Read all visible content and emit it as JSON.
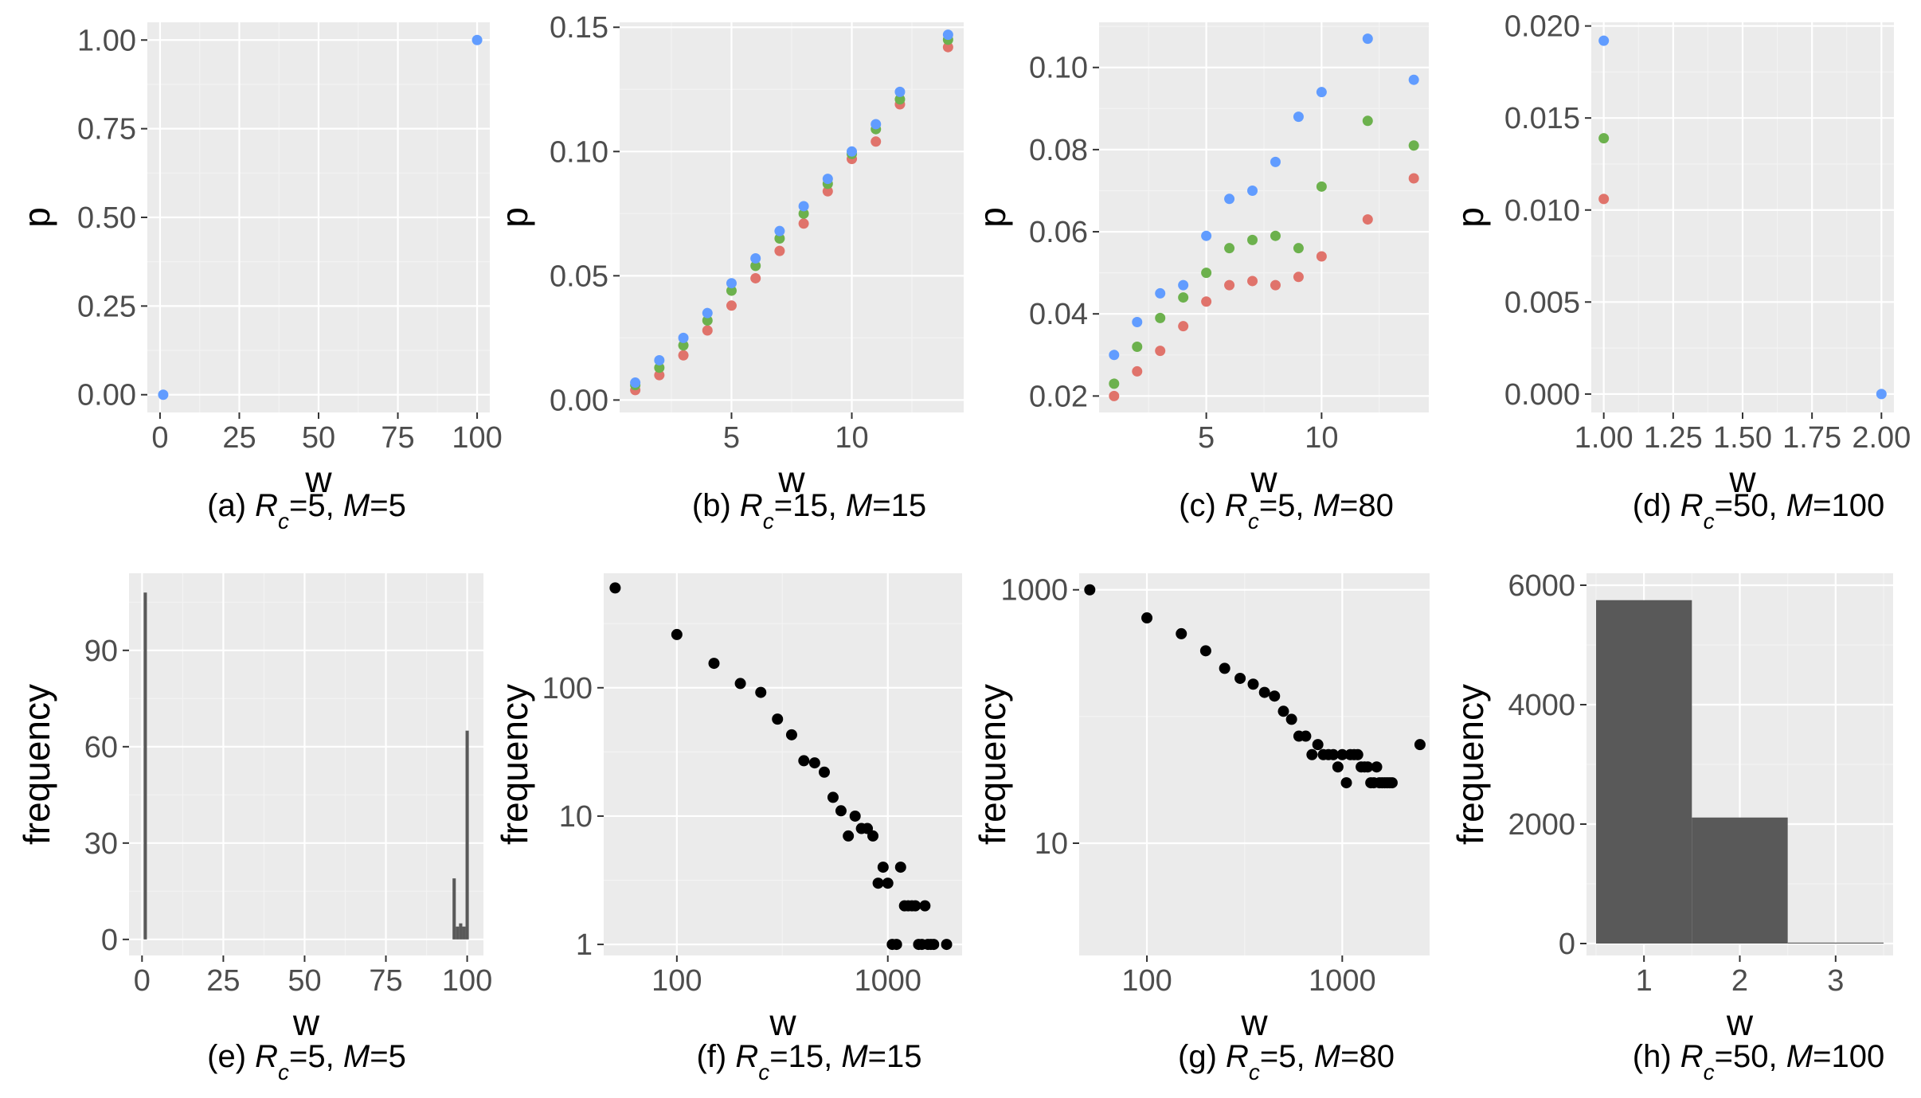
{
  "colors": {
    "panel_bg": "#ebebeb",
    "grid_major": "#ffffff",
    "grid_minor": "#f3f3f3",
    "tick_text": "#4d4d4d",
    "series_blue": "#619cff",
    "series_green": "#6cb14d",
    "series_red": "#e0736b",
    "point_black": "#000000",
    "bar_fill": "#595959"
  },
  "chart_data": [
    {
      "id": "a",
      "type": "scatter",
      "caption": {
        "prefix": "(a) ",
        "rc_label": "R",
        "rc_sub": "c",
        "rc_value": "=5",
        "sep": ", ",
        "m_label": "M",
        "m_value": "=5"
      },
      "xlabel": "w",
      "ylabel": "p",
      "xlim": [
        -4,
        104
      ],
      "ylim": [
        -0.05,
        1.05
      ],
      "x_ticks": [
        0,
        25,
        50,
        75,
        100
      ],
      "x_tick_labels": [
        "0",
        "25",
        "50",
        "75",
        "100"
      ],
      "y_ticks": [
        0,
        0.25,
        0.5,
        0.75,
        1.0
      ],
      "y_tick_labels": [
        "0.00",
        "0.25",
        "0.50",
        "0.75",
        "1.00"
      ],
      "series": [
        {
          "color": "series_blue",
          "x": [
            1,
            100
          ],
          "y": [
            0.0,
            1.0
          ]
        }
      ]
    },
    {
      "id": "b",
      "type": "scatter",
      "caption": {
        "prefix": "(b) ",
        "rc_label": "R",
        "rc_sub": "c",
        "rc_value": "=15",
        "sep": ", ",
        "m_label": "M",
        "m_value": "=15"
      },
      "xlabel": "w",
      "ylabel": "p",
      "xlim": [
        0.35,
        14.65
      ],
      "ylim": [
        -0.005,
        0.152
      ],
      "x_ticks": [
        5,
        10
      ],
      "x_tick_labels": [
        "5",
        "10"
      ],
      "y_ticks": [
        0,
        0.05,
        0.1,
        0.15
      ],
      "y_tick_labels": [
        "0.00",
        "0.05",
        "0.10",
        "0.15"
      ],
      "series": [
        {
          "color": "series_red",
          "x": [
            1,
            2,
            3,
            4,
            5,
            6,
            7,
            8,
            9,
            10,
            11,
            12,
            14
          ],
          "y": [
            0.004,
            0.01,
            0.018,
            0.028,
            0.038,
            0.049,
            0.06,
            0.071,
            0.084,
            0.097,
            0.104,
            0.119,
            0.142
          ]
        },
        {
          "color": "series_green",
          "x": [
            1,
            2,
            3,
            4,
            5,
            6,
            7,
            8,
            9,
            10,
            11,
            12,
            14
          ],
          "y": [
            0.006,
            0.013,
            0.022,
            0.032,
            0.044,
            0.054,
            0.065,
            0.075,
            0.087,
            0.099,
            0.109,
            0.121,
            0.145
          ]
        },
        {
          "color": "series_blue",
          "x": [
            1,
            2,
            3,
            4,
            5,
            6,
            7,
            8,
            9,
            10,
            11,
            12,
            14
          ],
          "y": [
            0.007,
            0.016,
            0.025,
            0.035,
            0.047,
            0.057,
            0.068,
            0.078,
            0.089,
            0.1,
            0.111,
            0.124,
            0.147
          ]
        }
      ]
    },
    {
      "id": "c",
      "type": "scatter",
      "caption": {
        "prefix": "(c) ",
        "rc_label": "R",
        "rc_sub": "c",
        "rc_value": "=5",
        "sep": ", ",
        "m_label": "M",
        "m_value": "=80"
      },
      "xlabel": "w",
      "ylabel": "p",
      "xlim": [
        0.35,
        14.65
      ],
      "ylim": [
        0.016,
        0.111
      ],
      "x_ticks": [
        5,
        10
      ],
      "x_tick_labels": [
        "5",
        "10"
      ],
      "y_ticks": [
        0.02,
        0.04,
        0.06,
        0.08,
        0.1
      ],
      "y_tick_labels": [
        "0.02",
        "0.04",
        "0.06",
        "0.08",
        "0.10"
      ],
      "series": [
        {
          "color": "series_red",
          "x": [
            1,
            2,
            3,
            4,
            5,
            6,
            7,
            8,
            9,
            10,
            12,
            14
          ],
          "y": [
            0.02,
            0.026,
            0.031,
            0.037,
            0.043,
            0.047,
            0.048,
            0.047,
            0.049,
            0.054,
            0.063,
            0.073
          ]
        },
        {
          "color": "series_green",
          "x": [
            1,
            2,
            3,
            4,
            5,
            6,
            7,
            8,
            9,
            10,
            12,
            14
          ],
          "y": [
            0.023,
            0.032,
            0.039,
            0.044,
            0.05,
            0.056,
            0.058,
            0.059,
            0.056,
            0.071,
            0.087,
            0.081
          ]
        },
        {
          "color": "series_blue",
          "x": [
            1,
            2,
            3,
            4,
            5,
            6,
            7,
            8,
            9,
            10,
            12,
            14
          ],
          "y": [
            0.03,
            0.038,
            0.045,
            0.047,
            0.059,
            0.068,
            0.07,
            0.077,
            0.088,
            0.094,
            0.107,
            0.097
          ]
        }
      ]
    },
    {
      "id": "d",
      "type": "scatter",
      "caption": {
        "prefix": "(d) ",
        "rc_label": "R",
        "rc_sub": "c",
        "rc_value": "=50",
        "sep": ", ",
        "m_label": "M",
        "m_value": "=100"
      },
      "xlabel": "w",
      "ylabel": "p",
      "xlim": [
        0.955,
        2.045
      ],
      "ylim": [
        -0.001,
        0.0202
      ],
      "x_ticks": [
        1.0,
        1.25,
        1.5,
        1.75,
        2.0
      ],
      "x_tick_labels": [
        "1.00",
        "1.25",
        "1.50",
        "1.75",
        "2.00"
      ],
      "y_ticks": [
        0,
        0.005,
        0.01,
        0.015,
        0.02
      ],
      "y_tick_labels": [
        "0.000",
        "0.005",
        "0.010",
        "0.015",
        "0.020"
      ],
      "series": [
        {
          "color": "series_blue",
          "x": [
            1,
            2
          ],
          "y": [
            0.0192,
            0.0
          ]
        },
        {
          "color": "series_green",
          "x": [
            1
          ],
          "y": [
            0.0139
          ]
        },
        {
          "color": "series_red",
          "x": [
            1
          ],
          "y": [
            0.0106
          ]
        }
      ]
    },
    {
      "id": "e",
      "type": "bar",
      "caption": {
        "prefix": "(e) ",
        "rc_label": "R",
        "rc_sub": "c",
        "rc_value": "=5",
        "sep": ", ",
        "m_label": "M",
        "m_value": "=5"
      },
      "xlabel": "w",
      "ylabel": "frequency",
      "xlim": [
        -4,
        105
      ],
      "ylim": [
        -5,
        114
      ],
      "x_ticks": [
        0,
        25,
        50,
        75,
        100
      ],
      "x_tick_labels": [
        "0",
        "25",
        "50",
        "75",
        "100"
      ],
      "y_ticks": [
        0,
        30,
        60,
        90
      ],
      "y_tick_labels": [
        "0",
        "30",
        "60",
        "90"
      ],
      "bar_width": 1,
      "bars": {
        "x": [
          1,
          96,
          97,
          98,
          99,
          100
        ],
        "y": [
          108,
          19,
          4,
          5,
          4,
          65
        ]
      }
    },
    {
      "id": "f",
      "type": "scatter",
      "log_x": true,
      "log_y": true,
      "caption": {
        "prefix": "(f) ",
        "rc_label": "R",
        "rc_sub": "c",
        "rc_value": "=15",
        "sep": ", ",
        "m_label": "M",
        "m_value": "=15"
      },
      "xlabel": "w",
      "ylabel": "frequency",
      "xlim": [
        45,
        2250
      ],
      "ylim": [
        0.82,
        780
      ],
      "x_ticks": [
        100,
        1000
      ],
      "x_tick_labels": [
        "100",
        "1000"
      ],
      "y_ticks": [
        1,
        10,
        100
      ],
      "y_tick_labels": [
        "1",
        "10",
        "100"
      ],
      "series": [
        {
          "color": "point_black",
          "x": [
            51,
            100,
            150,
            200,
            250,
            300,
            350,
            400,
            450,
            500,
            550,
            600,
            650,
            700,
            750,
            800,
            850,
            900,
            950,
            1000,
            1050,
            1100,
            1150,
            1200,
            1250,
            1300,
            1350,
            1400,
            1450,
            1500,
            1550,
            1600,
            1650,
            1900
          ],
          "y": [
            600,
            260,
            155,
            108,
            92,
            57,
            43,
            27,
            26,
            22,
            14,
            11,
            7,
            10,
            8,
            8,
            7,
            3,
            4,
            3,
            1,
            1,
            4,
            2,
            2,
            2,
            2,
            1,
            1,
            2,
            1,
            1,
            1,
            1
          ]
        }
      ]
    },
    {
      "id": "g",
      "type": "scatter",
      "log_x": true,
      "log_y": true,
      "caption": {
        "prefix": "(g) ",
        "rc_label": "R",
        "rc_sub": "c",
        "rc_value": "=5",
        "sep": ", ",
        "m_label": "M",
        "m_value": "=80"
      },
      "xlabel": "w",
      "ylabel": "frequency",
      "xlim": [
        45,
        2800
      ],
      "ylim": [
        1.3,
        1350
      ],
      "x_ticks": [
        100,
        1000
      ],
      "x_tick_labels": [
        "100",
        "1000"
      ],
      "y_ticks": [
        10,
        1000
      ],
      "y_tick_labels": [
        "10",
        "1000"
      ],
      "series": [
        {
          "color": "point_black",
          "x": [
            51,
            100,
            150,
            200,
            250,
            300,
            350,
            400,
            450,
            500,
            550,
            600,
            650,
            700,
            750,
            800,
            850,
            900,
            950,
            1000,
            1050,
            1100,
            1150,
            1200,
            1250,
            1300,
            1350,
            1400,
            1450,
            1500,
            1550,
            1600,
            1650,
            1700,
            1750,
            1800,
            2500
          ],
          "y": [
            1000,
            600,
            450,
            330,
            240,
            200,
            180,
            155,
            145,
            110,
            95,
            70,
            70,
            50,
            60,
            50,
            50,
            50,
            40,
            50,
            30,
            50,
            50,
            50,
            40,
            40,
            40,
            30,
            30,
            40,
            30,
            30,
            30,
            30,
            30,
            30,
            60
          ]
        }
      ]
    },
    {
      "id": "h",
      "type": "bar",
      "caption": {
        "prefix": "(h) ",
        "rc_label": "R",
        "rc_sub": "c",
        "rc_value": "=50",
        "sep": ", ",
        "m_label": "M",
        "m_value": "=100"
      },
      "xlabel": "w",
      "ylabel": "frequency",
      "xlim": [
        0.4,
        3.6
      ],
      "ylim": [
        -200,
        6200
      ],
      "x_ticks": [
        1,
        2,
        3
      ],
      "x_tick_labels": [
        "1",
        "2",
        "3"
      ],
      "y_ticks": [
        0,
        2000,
        4000,
        6000
      ],
      "y_tick_labels": [
        "0",
        "2000",
        "4000",
        "6000"
      ],
      "bar_width": 1,
      "bars": {
        "x": [
          1,
          2,
          3
        ],
        "y": [
          5750,
          2110,
          15
        ]
      }
    }
  ]
}
